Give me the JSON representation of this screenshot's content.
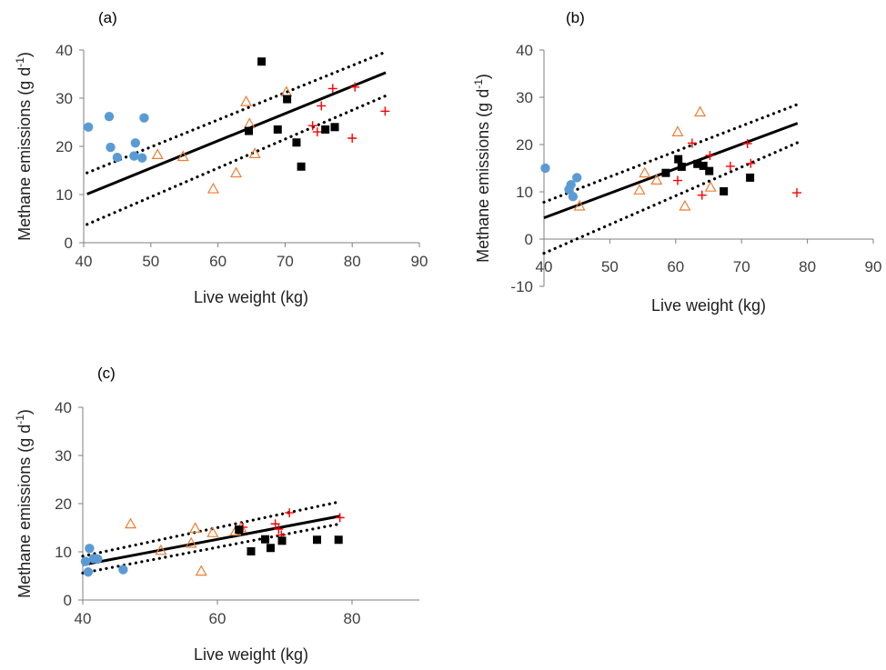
{
  "colors": {
    "circle": "#5B9BD5",
    "triangle": "#ED7D31",
    "plus": "#FF0000",
    "square": "#000000",
    "fit": "#000000",
    "axis": "#7f7f7f"
  },
  "chart_data": [
    {
      "type": "scatter",
      "panel_label": "(a)",
      "xlabel": "Live weight (kg)",
      "ylabel": "Methane emissions (g d-1)",
      "xlim": [
        40,
        90
      ],
      "ylim": [
        0,
        40
      ],
      "xticks": [
        40,
        50,
        60,
        70,
        80,
        90
      ],
      "yticks": [
        0,
        10,
        20,
        30,
        40
      ],
      "series": [
        {
          "marker": "circle",
          "points": [
            [
              40.7,
              24.0
            ],
            [
              43.8,
              26.2
            ],
            [
              44.0,
              19.8
            ],
            [
              45.0,
              17.7
            ],
            [
              47.5,
              18.0
            ],
            [
              47.7,
              20.7
            ],
            [
              48.7,
              17.6
            ],
            [
              49.0,
              25.9
            ]
          ]
        },
        {
          "marker": "triangle",
          "points": [
            [
              51.0,
              18.3
            ],
            [
              54.8,
              17.9
            ],
            [
              59.3,
              11.2
            ],
            [
              62.7,
              14.5
            ],
            [
              64.2,
              29.3
            ],
            [
              64.7,
              24.7
            ],
            [
              65.5,
              18.5
            ],
            [
              70.2,
              31.3
            ]
          ]
        },
        {
          "marker": "plus",
          "points": [
            [
              74.1,
              24.3
            ],
            [
              74.8,
              23.0
            ],
            [
              75.4,
              28.4
            ],
            [
              77.1,
              32.0
            ],
            [
              80.0,
              21.7
            ],
            [
              80.4,
              32.3
            ],
            [
              84.9,
              27.3
            ]
          ]
        },
        {
          "marker": "square",
          "points": [
            [
              64.6,
              23.2
            ],
            [
              66.5,
              37.6
            ],
            [
              68.9,
              23.5
            ],
            [
              70.3,
              29.8
            ],
            [
              71.7,
              20.8
            ],
            [
              72.4,
              15.8
            ],
            [
              76.0,
              23.5
            ],
            [
              77.4,
              24.0
            ]
          ]
        }
      ],
      "fit": {
        "x": [
          40.5,
          85
        ],
        "y": [
          10.1,
          35.3
        ]
      },
      "ci_upper": {
        "x": [
          40.5,
          85
        ],
        "y": [
          14.5,
          39.6
        ]
      },
      "ci_lower": {
        "x": [
          40.5,
          85
        ],
        "y": [
          3.8,
          30.5
        ]
      }
    },
    {
      "type": "scatter",
      "panel_label": "(b)",
      "xlabel": "Live weight (kg)",
      "ylabel": "Methane emissions (g d-1)",
      "xlim": [
        40,
        90
      ],
      "ylim": [
        -10,
        40
      ],
      "xticks": [
        40,
        50,
        60,
        70,
        80,
        90
      ],
      "yticks": [
        -10,
        0,
        10,
        20,
        30,
        40
      ],
      "series": [
        {
          "marker": "circle",
          "points": [
            [
              40.2,
              15.0
            ],
            [
              43.8,
              10.5
            ],
            [
              44.1,
              11.5
            ],
            [
              44.4,
              9.0
            ],
            [
              45.0,
              13.0
            ]
          ]
        },
        {
          "marker": "triangle",
          "points": [
            [
              45.4,
              7.0
            ],
            [
              54.5,
              10.4
            ],
            [
              55.3,
              14.0
            ],
            [
              57.1,
              12.5
            ],
            [
              60.3,
              22.7
            ],
            [
              61.4,
              7.0
            ],
            [
              63.7,
              26.9
            ],
            [
              65.3,
              11.0
            ]
          ]
        },
        {
          "marker": "plus",
          "points": [
            [
              60.3,
              12.4
            ],
            [
              62.5,
              20.3
            ],
            [
              64.0,
              9.3
            ],
            [
              65.2,
              17.7
            ],
            [
              68.3,
              15.4
            ],
            [
              70.9,
              20.2
            ],
            [
              71.4,
              16.0
            ],
            [
              78.4,
              9.8
            ]
          ]
        },
        {
          "marker": "square",
          "points": [
            [
              58.5,
              14.0
            ],
            [
              60.4,
              16.9
            ],
            [
              60.9,
              15.3
            ],
            [
              63.3,
              15.9
            ],
            [
              64.2,
              15.5
            ],
            [
              65.1,
              14.4
            ],
            [
              67.3,
              10.1
            ],
            [
              71.3,
              13.0
            ]
          ]
        }
      ],
      "fit": {
        "x": [
          40,
          78.5
        ],
        "y": [
          4.5,
          24.5
        ]
      },
      "ci_upper": {
        "x": [
          40,
          78.5
        ],
        "y": [
          7.8,
          28.5
        ]
      },
      "ci_lower": {
        "x": [
          40,
          78.5
        ],
        "y": [
          -3.0,
          20.4
        ]
      }
    },
    {
      "type": "scatter",
      "panel_label": "(c)",
      "xlabel": "Live weight (kg)",
      "ylabel": "Methane emissions (g d-1)",
      "xlim": [
        40,
        90
      ],
      "ylim": [
        0,
        40
      ],
      "xticks": [
        40,
        60,
        80
      ],
      "yticks": [
        0,
        10,
        20,
        30,
        40
      ],
      "series": [
        {
          "marker": "circle",
          "points": [
            [
              40.4,
              8.0
            ],
            [
              40.8,
              5.8
            ],
            [
              41.0,
              10.7
            ],
            [
              41.6,
              8.6
            ],
            [
              42.2,
              8.5
            ],
            [
              46.0,
              6.3
            ]
          ]
        },
        {
          "marker": "triangle",
          "points": [
            [
              47.1,
              15.8
            ],
            [
              51.6,
              10.3
            ],
            [
              56.1,
              11.8
            ],
            [
              56.7,
              14.9
            ],
            [
              57.6,
              6.0
            ],
            [
              59.3,
              14.0
            ],
            [
              62.7,
              14.3
            ],
            [
              63.5,
              15.0
            ]
          ]
        },
        {
          "marker": "plus",
          "points": [
            [
              63.8,
              15.1
            ],
            [
              68.6,
              15.8
            ],
            [
              69.1,
              14.7
            ],
            [
              69.5,
              13.5
            ],
            [
              70.7,
              18.1
            ],
            [
              78.2,
              17.1
            ]
          ]
        },
        {
          "marker": "square",
          "points": [
            [
              63.2,
              14.6
            ],
            [
              65.0,
              10.1
            ],
            [
              67.1,
              12.6
            ],
            [
              67.9,
              10.8
            ],
            [
              69.6,
              12.3
            ],
            [
              74.8,
              12.5
            ],
            [
              78.0,
              12.5
            ]
          ]
        }
      ],
      "fit": {
        "x": [
          40,
          78.2
        ],
        "y": [
          7.3,
          17.4
        ]
      },
      "ci_upper": {
        "x": [
          40,
          78.2
        ],
        "y": [
          9.1,
          20.4
        ]
      },
      "ci_lower": {
        "x": [
          40,
          78.2
        ],
        "y": [
          5.6,
          15.8
        ]
      }
    }
  ]
}
